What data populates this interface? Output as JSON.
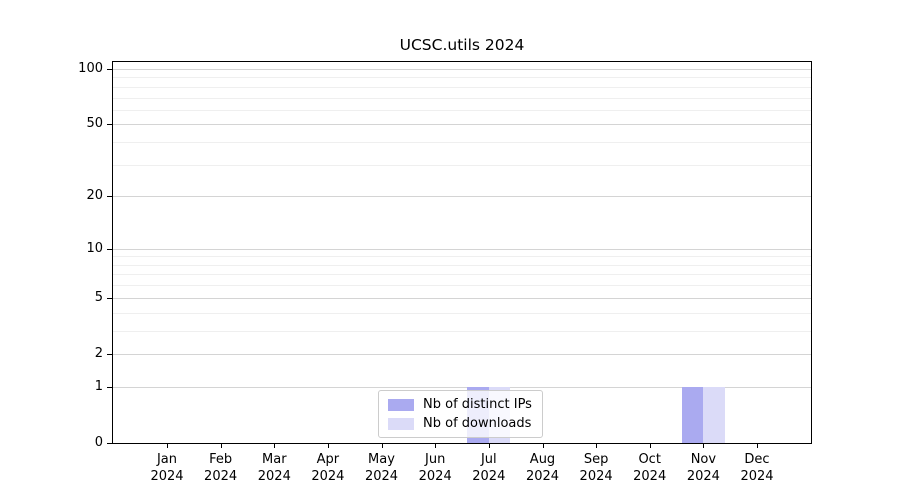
{
  "title": "UCSC.utils 2024",
  "colors": {
    "distinct_ips": "#aaaaf0",
    "downloads": "#dbdbf8",
    "grid_major": "#d4d4d4",
    "grid_minor": "#efefef",
    "axis": "#000000",
    "legend_border": "#cccccc"
  },
  "legend": {
    "items": [
      {
        "label": "Nb of distinct IPs",
        "color_key": "distinct_ips"
      },
      {
        "label": "Nb of downloads",
        "color_key": "downloads"
      }
    ]
  },
  "y_axis": {
    "tick_labels": [
      "100",
      "50",
      "20",
      "10",
      "5",
      "2",
      "1",
      "0"
    ]
  },
  "chart_data": {
    "type": "bar",
    "title": "UCSC.utils 2024",
    "categories": [
      "Jan 2024",
      "Feb 2024",
      "Mar 2024",
      "Apr 2024",
      "May 2024",
      "Jun 2024",
      "Jul 2024",
      "Aug 2024",
      "Sep 2024",
      "Oct 2024",
      "Nov 2024",
      "Dec 2024"
    ],
    "series": [
      {
        "name": "Nb of distinct IPs",
        "color_key": "distinct_ips",
        "values": [
          0,
          0,
          0,
          0,
          0,
          0,
          1,
          0,
          0,
          0,
          1,
          0
        ]
      },
      {
        "name": "Nb of downloads",
        "color_key": "downloads",
        "values": [
          0,
          0,
          0,
          0,
          0,
          0,
          1,
          0,
          0,
          0,
          1,
          0
        ]
      }
    ],
    "xlabel": "",
    "ylabel": "",
    "yscale": "log1p",
    "ylim": [
      0,
      109
    ],
    "y_major_ticks": [
      0,
      1,
      2,
      5,
      10,
      20,
      50,
      100
    ],
    "y_minor_gridlines": [
      3,
      4,
      6,
      7,
      8,
      9,
      30,
      40,
      60,
      70,
      80,
      90
    ],
    "grid": true,
    "legend_position": "lower center"
  }
}
